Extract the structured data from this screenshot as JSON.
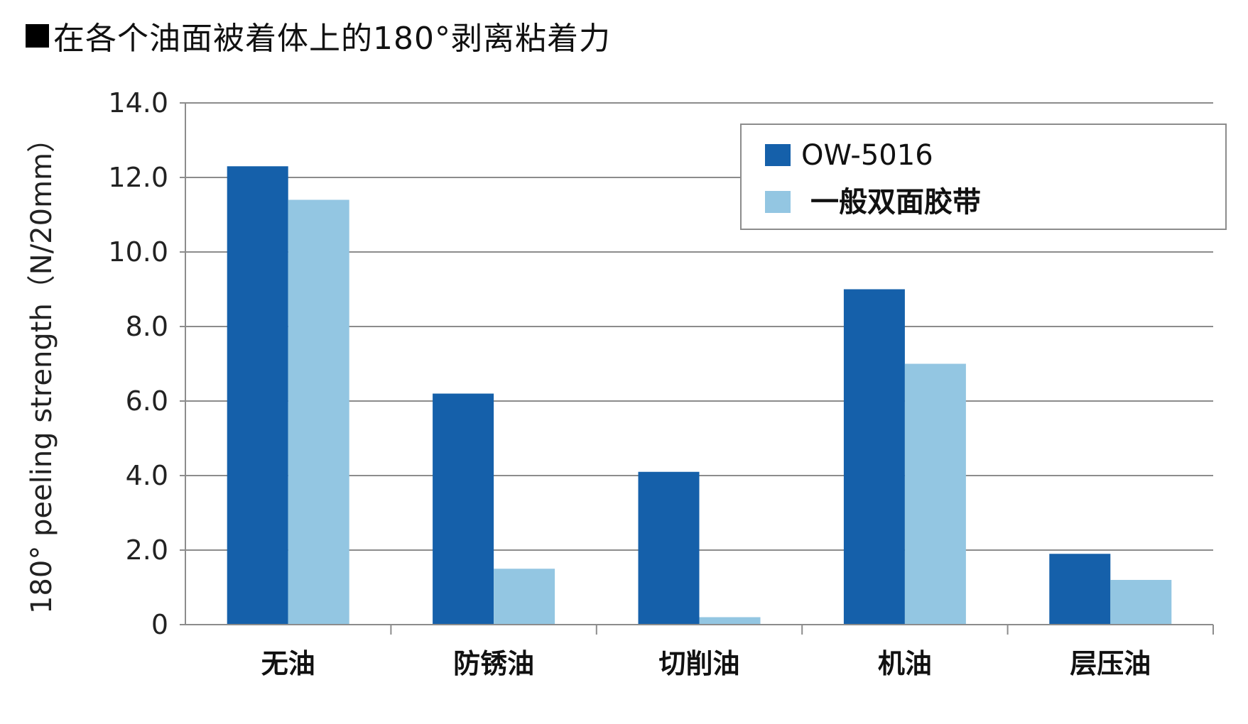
{
  "title": "在各个油面被着体上的180°剥离粘着力",
  "colors": {
    "series_0": "#1560aa",
    "series_1": "#93c6e2",
    "grid": "#8c8c8c",
    "axis": "#8c8c8c",
    "legend_border": "#8c8c8c"
  },
  "chart_data": {
    "type": "bar",
    "title": "在各个油面被着体上的180°剥离粘着力",
    "xlabel": "",
    "ylabel": "180° peeling strength（N/20mm）",
    "categories": [
      "无油",
      "防锈油",
      "切削油",
      "机油",
      "层压油"
    ],
    "series": [
      {
        "name": "OW-5016",
        "values": [
          12.3,
          6.2,
          4.1,
          9.0,
          1.9
        ]
      },
      {
        "name": "一般双面胶带",
        "values": [
          11.4,
          1.5,
          0.2,
          7.0,
          1.2
        ]
      }
    ],
    "ylim": [
      0,
      14
    ],
    "yticks": [
      "0",
      "2.0",
      "4.0",
      "6.0",
      "8.0",
      "10.0",
      "12.0",
      "14.0"
    ],
    "grid": true,
    "legend_position": "top-right"
  }
}
